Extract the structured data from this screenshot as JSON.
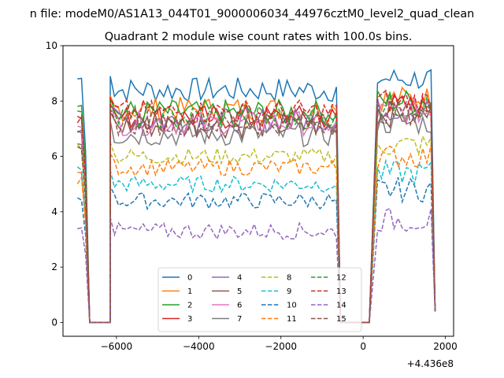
{
  "chart_data": {
    "type": "line",
    "suptitle": "n file: modeM0/AS1A13_044T01_9000006034_44976cztM0_level2_quad_clean",
    "title": "Quadrant 2 module wise count rates with 100.0s bins.",
    "xlabel": "",
    "ylabel": "",
    "x_offset_label": "+4.436e8",
    "xlim": [
      -7300,
      2200
    ],
    "ylim": [
      -0.5,
      10
    ],
    "x_ticks": [
      -6000,
      -4000,
      -2000,
      0,
      2000
    ],
    "x_tick_labels": [
      "−6000",
      "−4000",
      "−2000",
      "0",
      "2000"
    ],
    "y_ticks": [
      0,
      2,
      4,
      6,
      8,
      10
    ],
    "y_tick_labels": [
      "0",
      "2",
      "4",
      "6",
      "8",
      "10"
    ],
    "grid": false,
    "legend_position": "lower-center",
    "legend_columns": 4,
    "segments": [
      {
        "x0": -6950,
        "x1": -6650,
        "pattern": "drop_end"
      },
      {
        "x0": -6650,
        "x1": -6150,
        "pattern": "zero"
      },
      {
        "x0": -6150,
        "x1": -550,
        "pattern": "plateau"
      },
      {
        "x0": -550,
        "x1": 150,
        "pattern": "zero"
      },
      {
        "x0": 350,
        "x1": 1750,
        "pattern": "plateau_drop"
      }
    ],
    "series": [
      {
        "name": "0",
        "color": "#1f77b4",
        "dashed": false,
        "level": 8.4,
        "start": 8.8
      },
      {
        "name": "1",
        "color": "#ff7f0e",
        "dashed": false,
        "level": 7.7,
        "start": 5.3
      },
      {
        "name": "2",
        "color": "#2ca02c",
        "dashed": false,
        "level": 7.6,
        "start": 7.9
      },
      {
        "name": "3",
        "color": "#d62728",
        "dashed": false,
        "level": 7.4,
        "start": 7.5
      },
      {
        "name": "4",
        "color": "#9467bd",
        "dashed": false,
        "level": 7.3,
        "start": 7.0
      },
      {
        "name": "5",
        "color": "#8c564b",
        "dashed": false,
        "level": 7.1,
        "start": 6.8
      },
      {
        "name": "6",
        "color": "#e377c2",
        "dashed": false,
        "level": 7.2,
        "start": 7.2
      },
      {
        "name": "7",
        "color": "#7f7f7f",
        "dashed": false,
        "level": 6.8,
        "start": 6.5
      },
      {
        "name": "8",
        "color": "#bcbd22",
        "dashed": true,
        "level": 6.0,
        "start": 6.4
      },
      {
        "name": "9",
        "color": "#17becf",
        "dashed": true,
        "level": 5.0,
        "start": 5.6
      },
      {
        "name": "10",
        "color": "#1f77b4",
        "dashed": true,
        "level": 4.4,
        "start": 4.5
      },
      {
        "name": "11",
        "color": "#ff7f0e",
        "dashed": true,
        "level": 5.6,
        "start": 5.1
      },
      {
        "name": "12",
        "color": "#2ca02c",
        "dashed": true,
        "level": 7.4,
        "start": 7.7
      },
      {
        "name": "13",
        "color": "#d62728",
        "dashed": true,
        "level": 7.6,
        "start": 7.3
      },
      {
        "name": "14",
        "color": "#9467bd",
        "dashed": true,
        "level": 3.3,
        "start": 3.5
      },
      {
        "name": "15",
        "color": "#8c564b",
        "dashed": true,
        "level": 7.2,
        "start": 6.2
      }
    ]
  }
}
